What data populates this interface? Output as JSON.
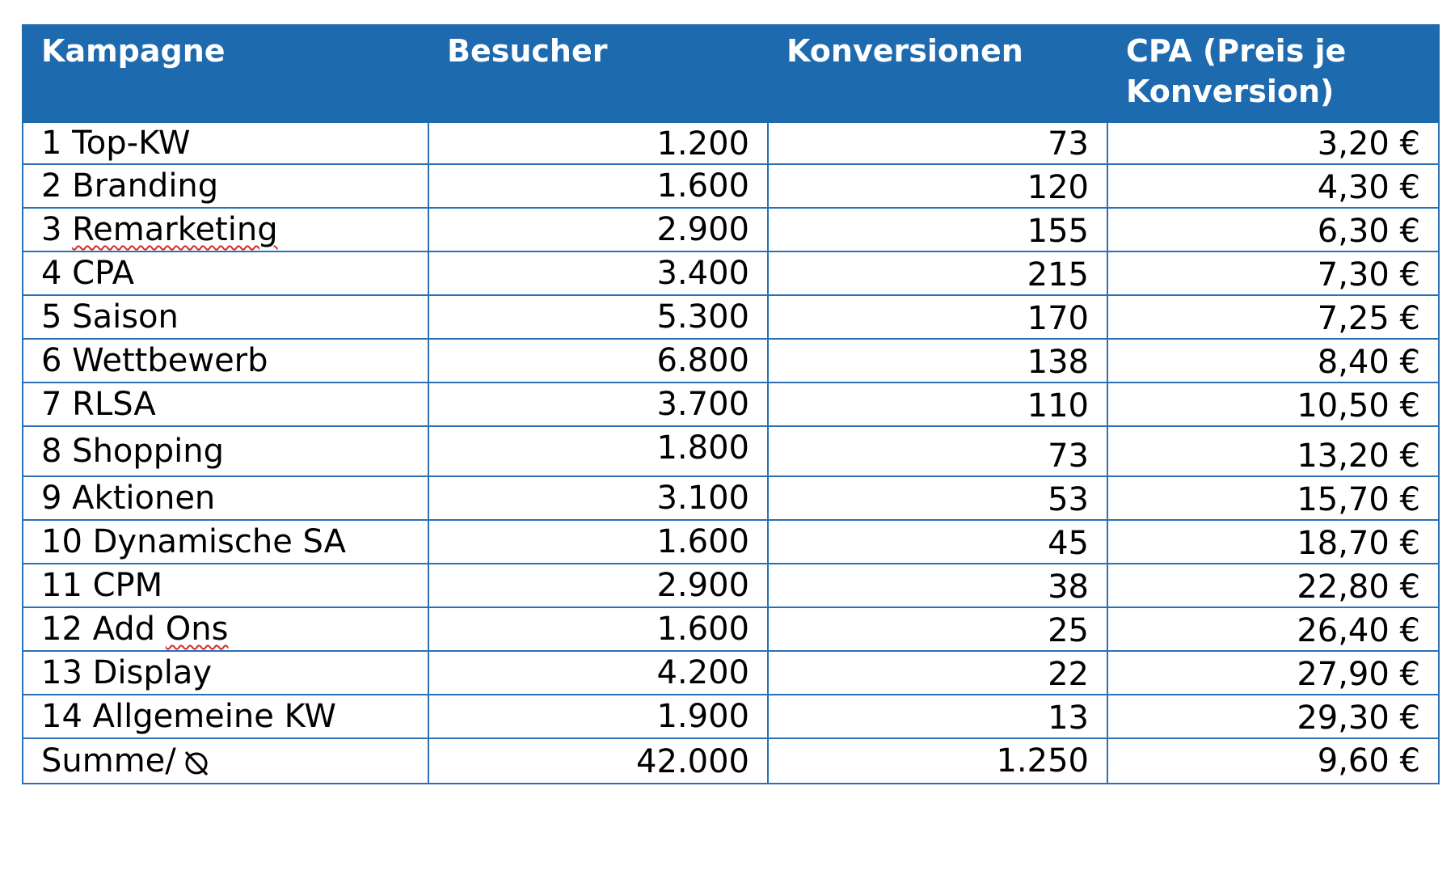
{
  "table": {
    "headers": [
      "Kampagne",
      "Besucher",
      "Konversionen",
      "CPA (Preis je Konversion)"
    ],
    "rows": [
      {
        "num": "1",
        "name": "Top-KW",
        "visitors": "1.200",
        "conversions": "73",
        "cpa": "3,20 €"
      },
      {
        "num": "2",
        "name": "Branding",
        "visitors": "1.600",
        "conversions": "120",
        "cpa": "4,30 €"
      },
      {
        "num": "3",
        "name": "Remarketing",
        "visitors": "2.900",
        "conversions": "155",
        "cpa": "6,30 €"
      },
      {
        "num": "4",
        "name": "CPA",
        "visitors": "3.400",
        "conversions": "215",
        "cpa": "7,30 €"
      },
      {
        "num": "5",
        "name": "Saison",
        "visitors": "5.300",
        "conversions": "170",
        "cpa": "7,25 €"
      },
      {
        "num": "6",
        "name": "Wettbewerb",
        "visitors": "6.800",
        "conversions": "138",
        "cpa": "8,40 €"
      },
      {
        "num": "7",
        "name": "RLSA",
        "visitors": "3.700",
        "conversions": "110",
        "cpa": "10,50 €"
      },
      {
        "num": "8",
        "name": "Shopping",
        "visitors": "1.800",
        "conversions": "73",
        "cpa": "13,20 €"
      },
      {
        "num": "9",
        "name": "Aktionen",
        "visitors": "3.100",
        "conversions": "53",
        "cpa": "15,70 €"
      },
      {
        "num": "10",
        "name": "Dynamische SA",
        "visitors": "1.600",
        "conversions": "45",
        "cpa": "18,70 €"
      },
      {
        "num": "11",
        "name": "CPM",
        "visitors": "2.900",
        "conversions": "38",
        "cpa": "22,80 €"
      },
      {
        "num": "12",
        "name": "Add Ons",
        "visitors": "1.600",
        "conversions": "25",
        "cpa": "26,40 €"
      },
      {
        "num": "13",
        "name": "Display",
        "visitors": "4.200",
        "conversions": "22",
        "cpa": "27,90 €"
      },
      {
        "num": "14",
        "name": "Allgemeine KW",
        "visitors": "1.900",
        "conversions": "13",
        "cpa": "29,30 €"
      }
    ],
    "sum": {
      "label": "Summe/",
      "icon": "average-icon",
      "visitors": "42.000",
      "conversions": "1.250",
      "cpa": "9,60 €"
    }
  },
  "colors": {
    "header_bg": "#1d6aae",
    "header_text": "#ffffff",
    "border": "#2a70b5",
    "spellcheck": "#d62a2a"
  }
}
